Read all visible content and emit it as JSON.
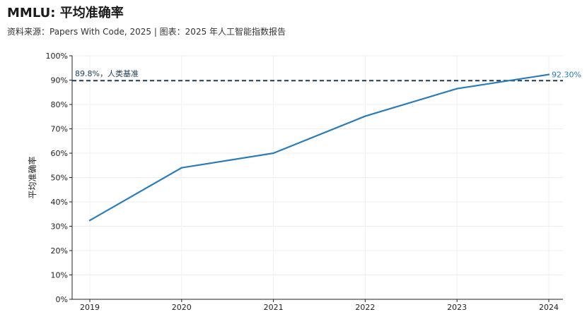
{
  "chart_data": {
    "type": "line",
    "title": "MMLU: 平均准确率",
    "subtitle": "资料来源：Papers With Code, 2025 | 图表：2025 年人工智能指数报告",
    "xlabel": "",
    "ylabel": "平均准确率",
    "x": [
      "2019",
      "2020",
      "2021",
      "2022",
      "2023",
      "2024"
    ],
    "series": [
      {
        "values": [
          32.4,
          54.0,
          60.0,
          75.2,
          86.5,
          92.3
        ],
        "color": "#2b7bb9"
      }
    ],
    "end_label": "92.30%",
    "ylim": [
      0,
      100
    ],
    "yticks": [
      "0%",
      "10%",
      "20%",
      "30%",
      "40%",
      "50%",
      "60%",
      "70%",
      "80%",
      "90%",
      "100%"
    ],
    "reference_line": {
      "value": 89.8,
      "label": "89.8%，人类基准",
      "color": "#1f3d55"
    },
    "grid": true,
    "legend": "none"
  }
}
